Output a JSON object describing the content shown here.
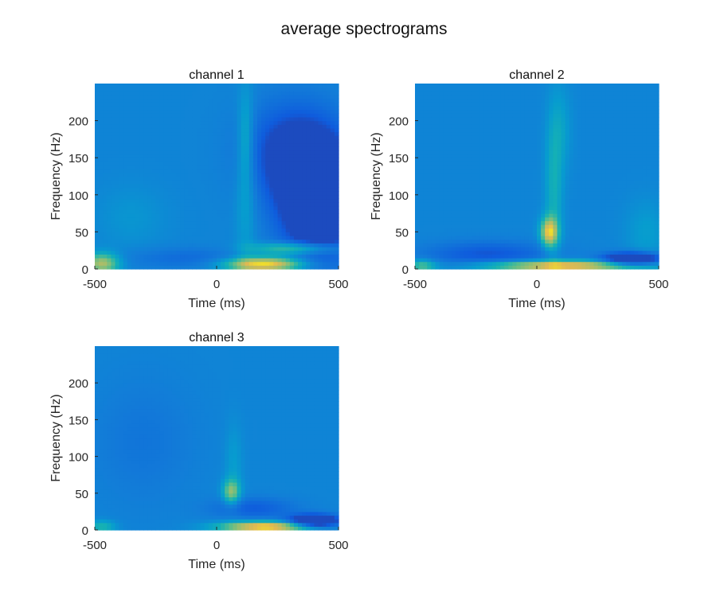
{
  "figure": {
    "title": "average spectrograms",
    "background": "#ffffff",
    "colormap": "parula"
  },
  "chart_data": [
    {
      "type": "heatmap",
      "title": "channel 1",
      "xlabel": "Time (ms)",
      "ylabel": "Frequency (Hz)",
      "xlim": [
        -500,
        500
      ],
      "ylim": [
        0,
        250
      ],
      "xticks": [
        -500,
        0,
        500
      ],
      "yticks": [
        0,
        50,
        100,
        150,
        200
      ],
      "features": [
        {
          "kind": "blob",
          "t": 420,
          "f": 95,
          "st": 110,
          "sf": 55,
          "v": -0.95
        },
        {
          "kind": "blob",
          "t": 300,
          "f": 160,
          "st": 130,
          "sf": 45,
          "v": -0.45
        },
        {
          "kind": "blob",
          "t": 120,
          "f": 120,
          "st": 30,
          "sf": 80,
          "v": 0.22
        },
        {
          "kind": "blob",
          "t": 120,
          "f": 180,
          "st": 20,
          "sf": 40,
          "v": 0.18
        },
        {
          "kind": "blob",
          "t": 200,
          "f": 7,
          "st": 120,
          "sf": 7,
          "v": 1.0
        },
        {
          "kind": "blob",
          "t": 330,
          "f": 28,
          "st": 130,
          "sf": 6,
          "v": 0.6
        },
        {
          "kind": "blob",
          "t": -470,
          "f": 8,
          "st": 50,
          "sf": 10,
          "v": 0.7
        },
        {
          "kind": "blob",
          "t": -100,
          "f": 15,
          "st": 200,
          "sf": 10,
          "v": -0.2
        },
        {
          "kind": "blob",
          "t": -350,
          "f": 70,
          "st": 100,
          "sf": 30,
          "v": 0.1
        }
      ]
    },
    {
      "type": "heatmap",
      "title": "channel 2",
      "xlabel": "Time (ms)",
      "ylabel": "Frequency (Hz)",
      "xlim": [
        -500,
        500
      ],
      "ylim": [
        0,
        250
      ],
      "xticks": [
        -500,
        0,
        500
      ],
      "yticks": [
        0,
        50,
        100,
        150,
        200
      ],
      "features": [
        {
          "kind": "blob",
          "t": 50,
          "f": 50,
          "st": 25,
          "sf": 14,
          "v": 0.8
        },
        {
          "kind": "blob",
          "t": 70,
          "f": 110,
          "st": 25,
          "sf": 70,
          "v": 0.28
        },
        {
          "kind": "blob",
          "t": 100,
          "f": 190,
          "st": 30,
          "sf": 40,
          "v": 0.15
        },
        {
          "kind": "blob",
          "t": 100,
          "f": 5,
          "st": 230,
          "sf": 5,
          "v": 0.95
        },
        {
          "kind": "blob",
          "t": 390,
          "f": 14,
          "st": 80,
          "sf": 6,
          "v": -0.95
        },
        {
          "kind": "blob",
          "t": -200,
          "f": 20,
          "st": 180,
          "sf": 12,
          "v": -0.35
        },
        {
          "kind": "blob",
          "t": -470,
          "f": 5,
          "st": 40,
          "sf": 6,
          "v": 0.45
        },
        {
          "kind": "blob",
          "t": 450,
          "f": 50,
          "st": 60,
          "sf": 30,
          "v": 0.15
        }
      ]
    },
    {
      "type": "heatmap",
      "title": "channel 3",
      "xlabel": "Time (ms)",
      "ylabel": "Frequency (Hz)",
      "xlim": [
        -500,
        500
      ],
      "ylim": [
        0,
        250
      ],
      "xticks": [
        -500,
        0,
        500
      ],
      "yticks": [
        0,
        50,
        100,
        150,
        200
      ],
      "features": [
        {
          "kind": "blob",
          "t": 60,
          "f": 52,
          "st": 25,
          "sf": 12,
          "v": 0.55
        },
        {
          "kind": "blob",
          "t": 70,
          "f": 90,
          "st": 25,
          "sf": 40,
          "v": 0.15
        },
        {
          "kind": "blob",
          "t": 200,
          "f": 5,
          "st": 130,
          "sf": 5,
          "v": 1.0
        },
        {
          "kind": "blob",
          "t": 400,
          "f": 13,
          "st": 70,
          "sf": 6,
          "v": -0.95
        },
        {
          "kind": "blob",
          "t": 150,
          "f": 30,
          "st": 120,
          "sf": 10,
          "v": -0.3
        },
        {
          "kind": "blob",
          "t": -470,
          "f": 5,
          "st": 40,
          "sf": 6,
          "v": 0.35
        },
        {
          "kind": "blob",
          "t": -300,
          "f": 120,
          "st": 150,
          "sf": 60,
          "v": -0.12
        }
      ]
    }
  ]
}
